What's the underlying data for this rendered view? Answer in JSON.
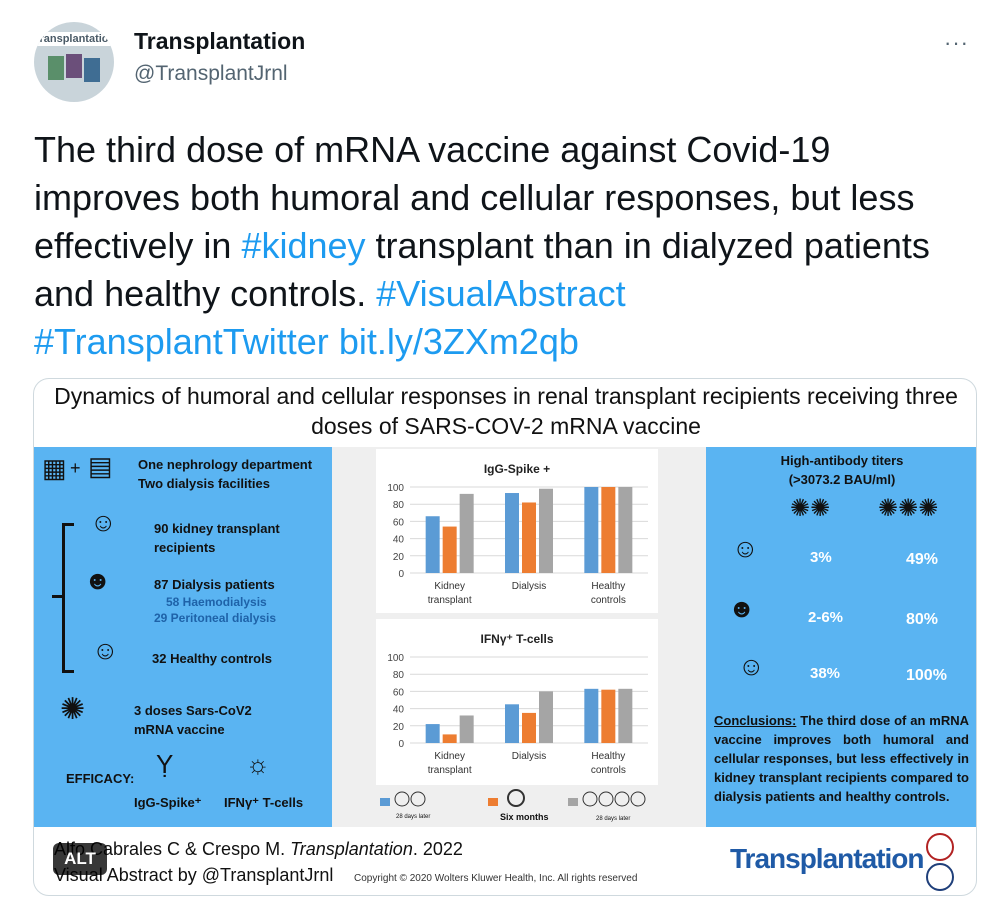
{
  "author": {
    "name": "Transplantation",
    "handle": "@TransplantJrnl",
    "avatar_text": "ransplantatio"
  },
  "more_label": "···",
  "tweet": {
    "text_1": "The third dose of mRNA vaccine against Covid-19 improves both humoral and cellular responses, but less effectively in ",
    "tag_kidney": "#kidney",
    "text_2": " transplant than in dialyzed patients and healthy controls. ",
    "tag_visual": "#VisualAbstract",
    "tag_twitter": "#TransplantTwitter",
    "link": "bit.ly/3ZXm2qb"
  },
  "abstract": {
    "title": "Dynamics of humoral and cellular responses in renal transplant recipients receiving three doses of SARS-COV-2 mRNA vaccine",
    "left": {
      "sites_1": "One nephrology department",
      "sites_2": "Two dialysis facilities",
      "kt": "90 kidney transplant recipients",
      "dialysis": "87 Dialysis patients",
      "haemo": "58 Haemodialysis",
      "perit": "29 Peritoneal dialysis",
      "healthy": "32 Healthy controls",
      "doses_1": "3 doses Sars-CoV2",
      "doses_2": "mRNA vaccine",
      "efficacy": "EFFICACY:",
      "igg": "IgG-Spike⁺",
      "ifn": "IFNγ⁺ T-cells"
    },
    "legend": {
      "d1": "28 days later",
      "d2": "Six months",
      "d3": "28 days later"
    },
    "right": {
      "heading_1": "High-antibody titers",
      "heading_2": "(>3073.2 BAU/ml)",
      "rows": [
        {
          "a": "3%",
          "b": "49%"
        },
        {
          "a": "2-6%",
          "b": "80%"
        },
        {
          "a": "38%",
          "b": "100%"
        }
      ],
      "conclusions_label": "Conclusions:",
      "conclusions_text": " The third dose of an mRNA vaccine improves both humoral and cellular responses, but less effectively in kidney transplant recipients compared to dialysis patients and healthy controls."
    },
    "footer": {
      "citation_plain": "Alfo Cabrales C & Crespo M. ",
      "citation_journal": "Transplantation",
      "citation_year": ". 2022",
      "visual_by": "Visual Abstract by @TransplantJrnl",
      "copyright": "Copyright © 2020  Wolters Kluwer Health, Inc. All rights reserved",
      "journal": "Transplantation"
    }
  },
  "alt_badge": "ALT",
  "colors": {
    "blue_bar": "#5b9bd5",
    "orange_bar": "#ed7d31",
    "gray_bar": "#a5a5a5",
    "panel_blue": "#5ab4f2",
    "link": "#1d9bf0"
  },
  "chart_data": [
    {
      "type": "bar",
      "title": "IgG-Spike +",
      "categories": [
        "Kidney\ntransplant",
        "Dialysis",
        "Healthy\ncontrols"
      ],
      "series": [
        {
          "values": [
            66,
            93,
            100
          ]
        },
        {
          "values": [
            54,
            82,
            100
          ]
        },
        {
          "values": [
            92,
            98,
            100
          ]
        }
      ],
      "yticks": [
        "0",
        "20",
        "40",
        "60",
        "80",
        "100"
      ],
      "ylim": [
        0,
        100
      ],
      "grid": true
    },
    {
      "type": "bar",
      "title": "IFNγ⁺ T-cells",
      "categories": [
        "Kidney\ntransplant",
        "Dialysis",
        "Healthy\ncontrols"
      ],
      "series": [
        {
          "values": [
            22,
            45,
            63
          ]
        },
        {
          "values": [
            10,
            35,
            62
          ]
        },
        {
          "values": [
            32,
            60,
            63
          ]
        }
      ],
      "yticks": [
        "0",
        "20",
        "40",
        "60",
        "80",
        "100"
      ],
      "ylim": [
        0,
        100
      ],
      "grid": true
    }
  ]
}
